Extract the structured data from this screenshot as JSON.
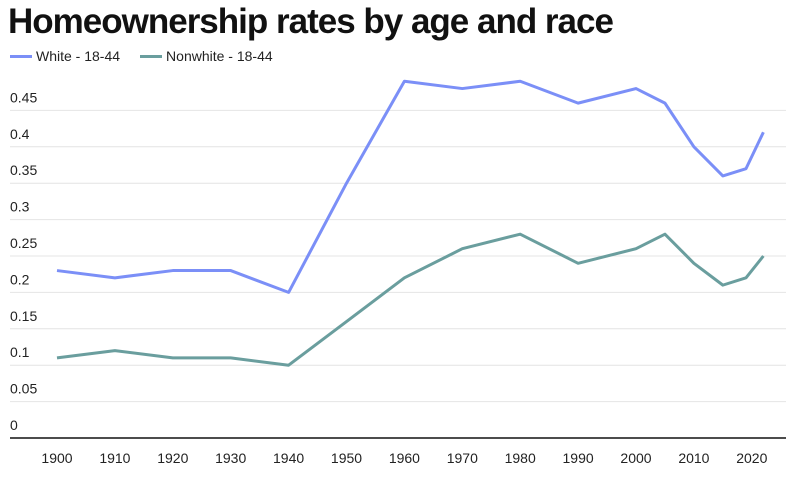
{
  "chart_data": {
    "type": "line",
    "title": "Homeownership rates by age and race",
    "xlabel": "",
    "ylabel": "",
    "x": [
      1900,
      1910,
      1920,
      1930,
      1940,
      1950,
      1960,
      1970,
      1980,
      1990,
      2000,
      2005,
      2010,
      2015,
      2019,
      2022
    ],
    "series": [
      {
        "name": "White - 18-44",
        "color": "#7b8ff7",
        "values": [
          0.23,
          0.22,
          0.23,
          0.23,
          0.2,
          0.35,
          0.49,
          0.48,
          0.49,
          0.46,
          0.48,
          0.46,
          0.4,
          0.36,
          0.37,
          0.42
        ]
      },
      {
        "name": "Nonwhite - 18-44",
        "color": "#6a9e9e",
        "values": [
          0.11,
          0.12,
          0.11,
          0.11,
          0.1,
          0.16,
          0.22,
          0.26,
          0.28,
          0.24,
          0.26,
          0.28,
          0.24,
          0.21,
          0.22,
          0.25
        ]
      }
    ],
    "xticks": [
      1900,
      1910,
      1920,
      1930,
      1940,
      1950,
      1960,
      1970,
      1980,
      1990,
      2000,
      2010,
      2020
    ],
    "yticks": [
      "0",
      "0.05",
      "0.1",
      "0.15",
      "0.2",
      "0.25",
      "0.3",
      "0.35",
      "0.4",
      "0.45"
    ],
    "ylim": [
      0,
      0.5
    ],
    "grid": true,
    "legend_position": "top-left"
  }
}
